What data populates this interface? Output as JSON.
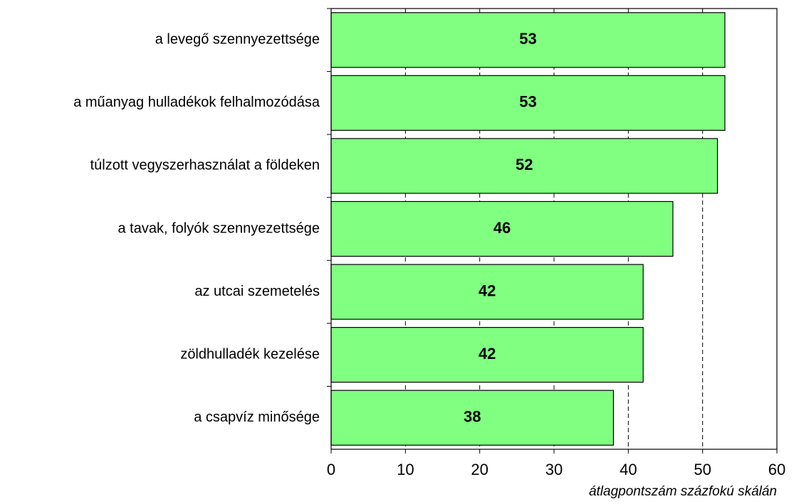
{
  "chart_data": {
    "type": "bar",
    "orientation": "horizontal",
    "categories": [
      "a levegő szennyezettsége",
      "a műanyag hulladékok felhalmozódása",
      "túlzott vegyszerhasználat a földeken",
      "a tavak, folyók szennyezettsége",
      "az utcai szemetelés",
      "zöldhulladék kezelése",
      "a csapvíz minősége"
    ],
    "values": [
      53,
      53,
      52,
      46,
      42,
      42,
      38
    ],
    "color": "#80ff80",
    "xlabel": "átlagpontszám százfokú skálán",
    "xlim": [
      0,
      60
    ],
    "xticks": [
      0,
      10,
      20,
      30,
      40,
      50,
      60
    ],
    "grid": true
  }
}
